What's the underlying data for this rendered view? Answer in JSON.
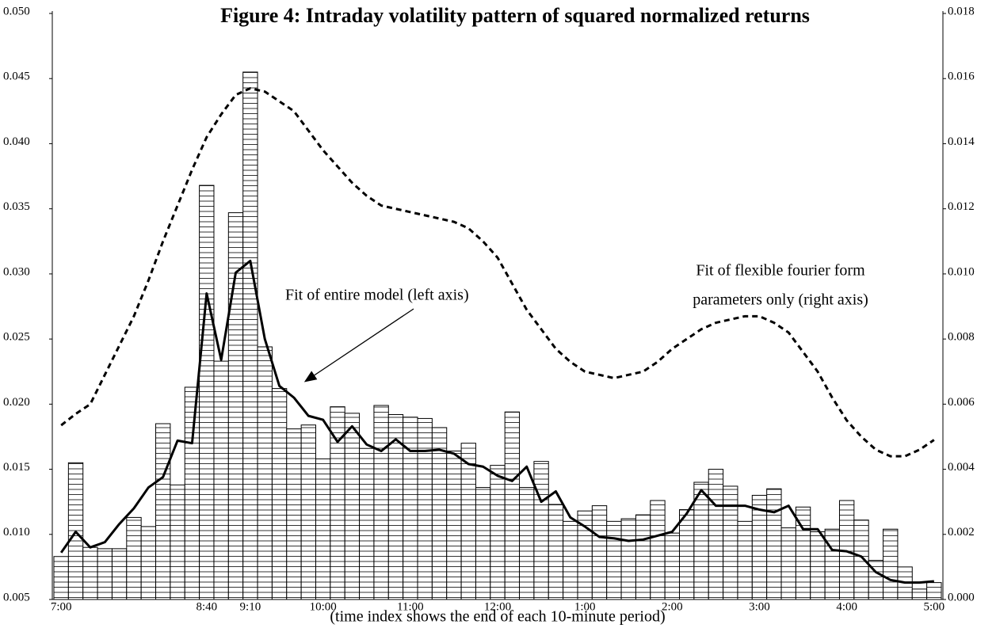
{
  "chart_data": {
    "type": "bar",
    "title": "Figure 4: Intraday volatility pattern of squared normalized returns",
    "x_label": "(time index shows the end of each 10-minute period)",
    "annotations": [
      "Fit of entire model (left axis)",
      "Fit of flexible fourier form",
      "parameters only (right axis)"
    ],
    "categories": [
      "7:00",
      null,
      null,
      null,
      null,
      null,
      null,
      null,
      null,
      null,
      "8:40",
      null,
      null,
      "9:10",
      null,
      null,
      null,
      null,
      "10:00",
      null,
      null,
      null,
      null,
      null,
      "11:00",
      null,
      null,
      null,
      null,
      null,
      "12:00",
      null,
      null,
      null,
      null,
      null,
      "1:00",
      null,
      null,
      null,
      null,
      null,
      "2:00",
      null,
      null,
      null,
      null,
      null,
      "3:00",
      null,
      null,
      null,
      null,
      null,
      "4:00",
      null,
      null,
      null,
      null,
      null,
      "5:00"
    ],
    "values": [
      0.0083,
      0.0155,
      0.009,
      0.0089,
      0.0089,
      0.0113,
      0.0106,
      0.0185,
      0.0138,
      0.0213,
      0.0368,
      0.0233,
      0.0347,
      0.0455,
      0.0244,
      0.0212,
      0.0181,
      0.0184,
      0.0158,
      0.0198,
      0.0193,
      0.0166,
      0.0199,
      0.0192,
      0.019,
      0.0189,
      0.0182,
      0.0164,
      0.017,
      0.0136,
      0.0153,
      0.0194,
      0.0136,
      0.0156,
      0.0123,
      0.011,
      0.0118,
      0.0122,
      0.011,
      0.0112,
      0.0115,
      0.0126,
      0.0101,
      0.0119,
      0.014,
      0.015,
      0.0137,
      0.011,
      0.013,
      0.0135,
      0.0105,
      0.0121,
      0.0102,
      0.0104,
      0.0126,
      0.0111,
      0.008,
      0.0104,
      0.0075,
      0.0058,
      0.0063
    ],
    "color": "#ffffff",
    "series": [
      {
        "type": "line",
        "color": "#000000",
        "dash": false,
        "values": [
          0.0086,
          0.0102,
          0.009,
          0.0094,
          0.0108,
          0.012,
          0.0136,
          0.0144,
          0.0172,
          0.017,
          0.0285,
          0.0234,
          0.0301,
          0.031,
          0.025,
          0.0214,
          0.0205,
          0.0191,
          0.0188,
          0.0171,
          0.0183,
          0.0169,
          0.0164,
          0.0173,
          0.0164,
          0.0164,
          0.0165,
          0.0162,
          0.0154,
          0.0152,
          0.0145,
          0.0141,
          0.0152,
          0.0125,
          0.0133,
          0.0113,
          0.0106,
          0.0098,
          0.0097,
          0.0095,
          0.0096,
          0.0099,
          0.0102,
          0.0116,
          0.0134,
          0.0122,
          0.0122,
          0.0122,
          0.0119,
          0.0117,
          0.0122,
          0.0104,
          0.0104,
          0.0088,
          0.0087,
          0.0083,
          0.0071,
          0.0065,
          0.0063,
          0.0063,
          0.0064
        ]
      },
      {
        "type": "line",
        "color": "#000000",
        "dash": true,
        "axis": "y2",
        "values": [
          0.00535,
          0.0057,
          0.006,
          0.0069,
          0.0078,
          0.0087,
          0.0098,
          0.011,
          0.0121,
          0.0132,
          0.0142,
          0.0149,
          0.0155,
          0.0157,
          0.0156,
          0.0153,
          0.015,
          0.0144,
          0.0138,
          0.0133,
          0.0128,
          0.0124,
          0.0121,
          0.012,
          0.0119,
          0.0118,
          0.0117,
          0.0116,
          0.0114,
          0.011,
          0.0105,
          0.0097,
          0.0089,
          0.0083,
          0.0077,
          0.0073,
          0.007,
          0.0069,
          0.0068,
          0.0069,
          0.007,
          0.0073,
          0.0077,
          0.008,
          0.0083,
          0.0085,
          0.0086,
          0.0087,
          0.0087,
          0.0085,
          0.0082,
          0.0076,
          0.007,
          0.0062,
          0.0055,
          0.005,
          0.0046,
          0.0044,
          0.0044,
          0.0046,
          0.0049
        ]
      }
    ],
    "ylim": [
      0.005,
      0.05
    ],
    "yticks": [
      0.005,
      {
        "value": 0.01,
        "label": "0.010"
      },
      0.015,
      {
        "value": 0.02,
        "label": "0.020"
      },
      0.025,
      {
        "value": 0.03,
        "label": "0.030"
      },
      0.035,
      {
        "value": 0.04,
        "label": "0.040"
      },
      0.045,
      {
        "value": 0.05,
        "label": "0.050"
      }
    ],
    "y2lim": [
      0,
      0.018
    ],
    "y2ticks": [
      {
        "value": 0,
        "label": "0.000"
      },
      0.002,
      0.004,
      0.006,
      0.008,
      {
        "value": 0.01,
        "label": "0.010"
      },
      0.012,
      0.014,
      0.016,
      0.018
    ],
    "grid": false
  }
}
